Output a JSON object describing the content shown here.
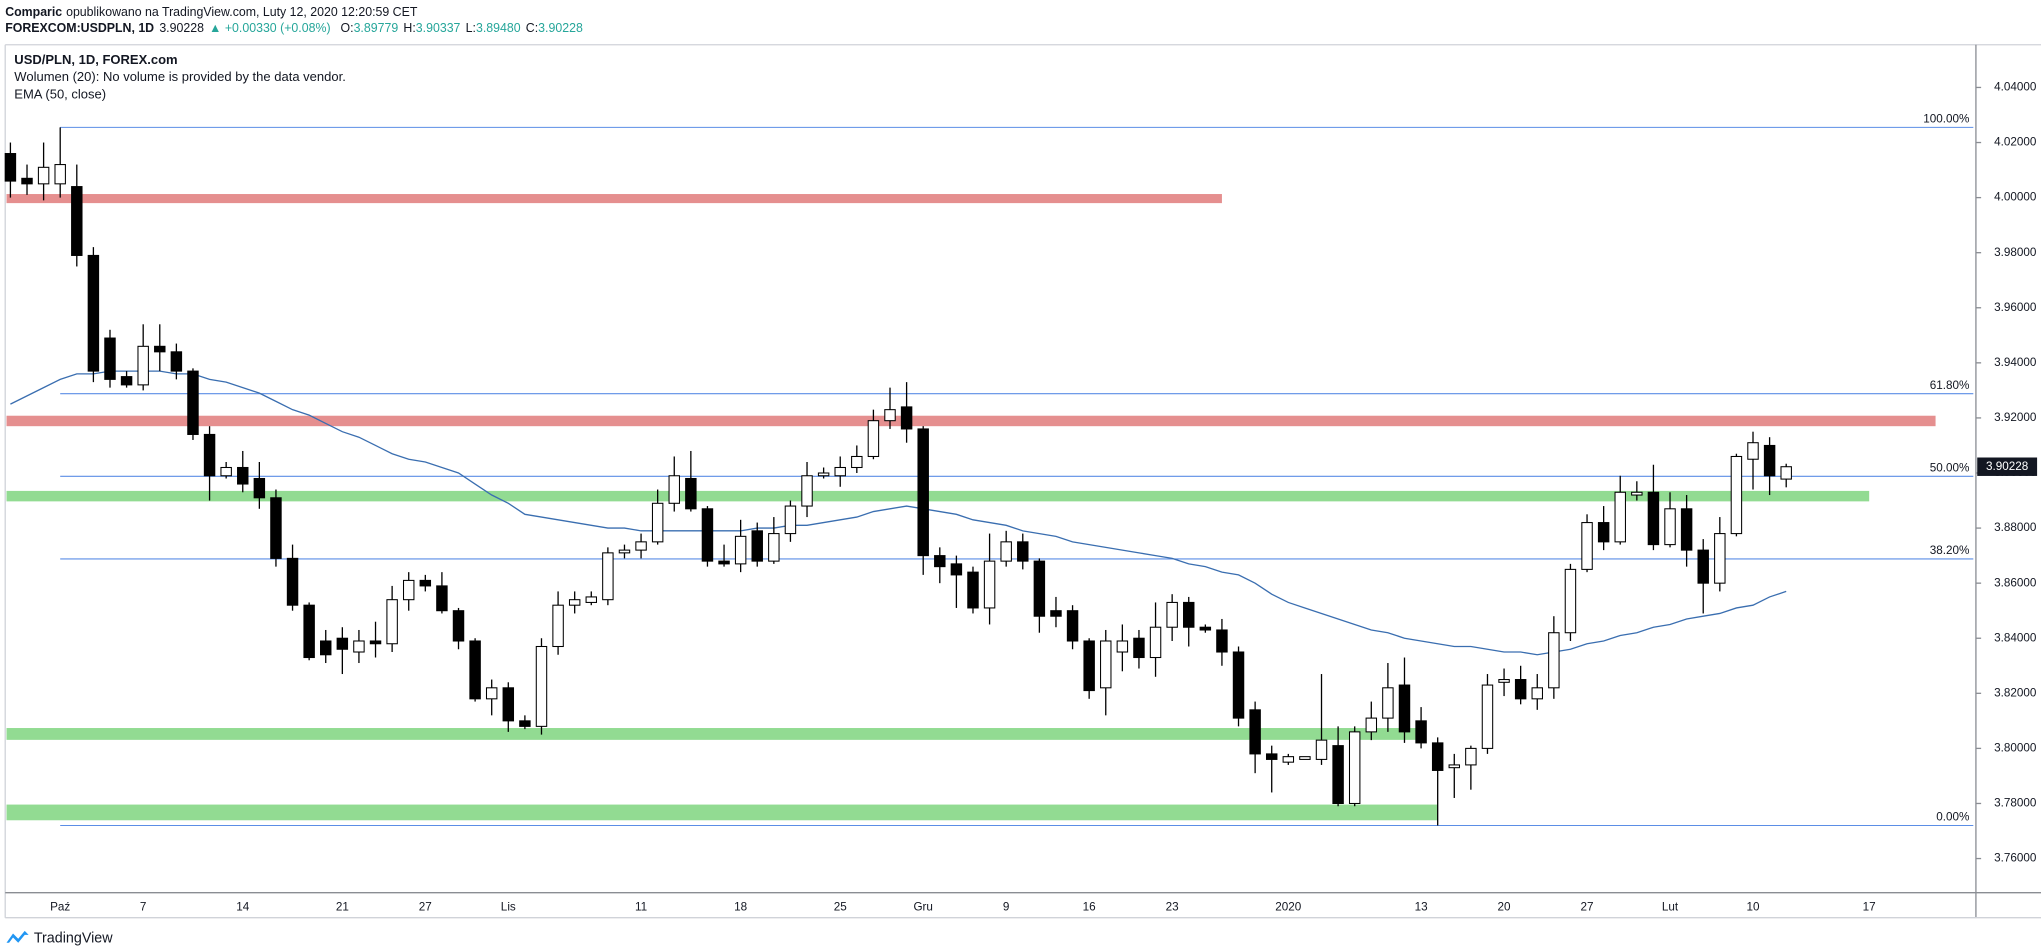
{
  "header": {
    "author": "Comparic",
    "note": "opublikowano na TradingView.com, Luty 12, 2020 12:20:59 CET",
    "symbol": "FOREXCOM:USDPLN, 1D",
    "price": "3.90228",
    "change": "▲ +0.00330 (+0.08%)",
    "ohlc": [
      {
        "label": "O:",
        "value": "3.89779"
      },
      {
        "label": "H:",
        "value": "3.90337"
      },
      {
        "label": "L:",
        "value": "3.89480"
      },
      {
        "label": "C:",
        "value": "3.90228"
      }
    ]
  },
  "footer": {
    "brand": "TradingView"
  },
  "chart_data": {
    "type": "candlestick",
    "volume_note": "Wolumen (20): No volume is provided by the data vendor.",
    "categories": [
      null,
      null,
      null,
      "Paź",
      null,
      null,
      null,
      null,
      "7",
      null,
      null,
      null,
      null,
      null,
      "14",
      null,
      null,
      null,
      null,
      null,
      "21",
      null,
      null,
      null,
      null,
      "27",
      null,
      null,
      null,
      null,
      "Lis",
      null,
      null,
      null,
      null,
      null,
      null,
      null,
      "11",
      null,
      null,
      null,
      null,
      null,
      "18",
      null,
      null,
      null,
      null,
      null,
      "25",
      null,
      null,
      null,
      null,
      "Gru",
      null,
      null,
      null,
      null,
      "9",
      null,
      null,
      null,
      null,
      "16",
      null,
      null,
      null,
      null,
      "23",
      null,
      null,
      null,
      null,
      null,
      null,
      "2020",
      null,
      null,
      null,
      null,
      null,
      null,
      null,
      "13",
      null,
      null,
      null,
      null,
      "20",
      null,
      null,
      null,
      null,
      "27",
      null,
      null,
      null,
      null,
      "Lut",
      null,
      null,
      null,
      null,
      "10",
      null,
      null,
      null,
      null,
      null,
      null,
      "17",
      null,
      null,
      null,
      null,
      null,
      null
    ],
    "series": [
      {
        "name": "USD/PLN, 1D, FOREX.com",
        "type": "candlestick",
        "up_color": "#ffffff",
        "down_color": "#000000",
        "border_color": "#000000",
        "open": [
          4.016,
          4.007,
          4.005,
          4.005,
          4.004,
          3.979,
          3.949,
          3.935,
          3.932,
          3.946,
          3.944,
          3.937,
          3.914,
          3.899,
          3.902,
          3.898,
          3.891,
          3.869,
          3.852,
          3.839,
          3.84,
          3.835,
          3.839,
          3.838,
          3.854,
          3.861,
          3.859,
          3.85,
          3.839,
          3.818,
          3.822,
          3.81,
          3.808,
          3.837,
          3.852,
          3.853,
          3.854,
          3.871,
          3.872,
          3.875,
          3.889,
          3.898,
          3.887,
          3.868,
          3.867,
          3.879,
          3.868,
          3.878,
          3.888,
          3.899,
          3.899,
          3.902,
          3.906,
          3.919,
          3.924,
          3.916,
          3.87,
          3.867,
          3.864,
          3.851,
          3.868,
          3.875,
          3.868,
          3.85,
          3.85,
          3.839,
          3.822,
          3.835,
          3.84,
          3.833,
          3.844,
          3.853,
          3.844,
          3.843,
          3.835,
          3.814,
          3.798,
          3.795,
          3.796,
          3.796,
          3.801,
          3.78,
          3.806,
          3.811,
          3.823,
          3.81,
          3.802,
          3.793,
          3.794,
          3.8,
          3.824,
          3.825,
          3.818,
          3.822,
          3.842,
          3.865,
          3.882,
          3.875,
          3.892,
          3.893,
          3.874,
          3.887,
          3.872,
          3.86,
          3.878,
          3.905,
          3.91,
          3.89779,
          null,
          null,
          null,
          null,
          null,
          null,
          null,
          null,
          null,
          null,
          null
        ],
        "high": [
          4.02,
          4.012,
          4.02,
          4.0255,
          4.012,
          3.982,
          3.952,
          3.937,
          3.954,
          3.954,
          3.947,
          3.938,
          3.917,
          3.904,
          3.908,
          3.904,
          3.894,
          3.874,
          3.853,
          3.843,
          3.844,
          3.843,
          3.846,
          3.859,
          3.864,
          3.863,
          3.864,
          3.851,
          3.84,
          3.825,
          3.824,
          3.812,
          3.84,
          3.857,
          3.857,
          3.857,
          3.873,
          3.874,
          3.878,
          3.894,
          3.906,
          3.908,
          3.888,
          3.874,
          3.883,
          3.882,
          3.884,
          3.89,
          3.904,
          3.902,
          3.906,
          3.91,
          3.923,
          3.931,
          3.933,
          3.917,
          3.873,
          3.87,
          3.866,
          3.878,
          3.879,
          3.878,
          3.869,
          3.855,
          3.852,
          3.84,
          3.843,
          3.845,
          3.843,
          3.853,
          3.856,
          3.855,
          3.845,
          3.847,
          3.837,
          3.817,
          3.801,
          3.798,
          3.797,
          3.827,
          3.808,
          3.808,
          3.817,
          3.831,
          3.833,
          3.815,
          3.804,
          3.798,
          3.801,
          3.827,
          3.829,
          3.83,
          3.827,
          3.848,
          3.867,
          3.885,
          3.888,
          3.899,
          3.897,
          3.903,
          3.893,
          3.892,
          3.876,
          3.884,
          3.907,
          3.915,
          3.913,
          3.90337,
          null,
          null,
          null,
          null,
          null,
          null,
          null,
          null,
          null,
          null,
          null
        ],
        "low": [
          4.0,
          4.001,
          3.999,
          4.0,
          3.975,
          3.933,
          3.931,
          3.931,
          3.93,
          3.937,
          3.934,
          3.912,
          3.89,
          3.898,
          3.893,
          3.887,
          3.866,
          3.85,
          3.832,
          3.831,
          3.827,
          3.831,
          3.833,
          3.835,
          3.85,
          3.857,
          3.849,
          3.836,
          3.817,
          3.812,
          3.806,
          3.807,
          3.805,
          3.834,
          3.849,
          3.852,
          3.852,
          3.869,
          3.869,
          3.874,
          3.886,
          3.886,
          3.866,
          3.866,
          3.864,
          3.866,
          3.867,
          3.875,
          3.884,
          3.898,
          3.895,
          3.9,
          3.905,
          3.916,
          3.911,
          3.863,
          3.86,
          3.851,
          3.849,
          3.845,
          3.866,
          3.865,
          3.842,
          3.844,
          3.836,
          3.818,
          3.812,
          3.828,
          3.829,
          3.826,
          3.839,
          3.837,
          3.842,
          3.83,
          3.808,
          3.791,
          3.784,
          3.794,
          3.796,
          3.794,
          3.779,
          3.779,
          3.803,
          3.806,
          3.802,
          3.8,
          3.772,
          3.782,
          3.785,
          3.798,
          3.819,
          3.816,
          3.814,
          3.818,
          3.839,
          3.864,
          3.872,
          3.874,
          3.89,
          3.872,
          3.873,
          3.866,
          3.849,
          3.857,
          3.877,
          3.894,
          3.892,
          3.8948,
          null,
          null,
          null,
          null,
          null,
          null,
          null,
          null,
          null,
          null,
          null
        ],
        "close": [
          4.006,
          4.005,
          4.011,
          4.012,
          3.979,
          3.937,
          3.934,
          3.932,
          3.946,
          3.944,
          3.937,
          3.914,
          3.899,
          3.902,
          3.896,
          3.891,
          3.869,
          3.852,
          3.833,
          3.834,
          3.836,
          3.839,
          3.838,
          3.854,
          3.861,
          3.859,
          3.85,
          3.839,
          3.818,
          3.822,
          3.81,
          3.808,
          3.837,
          3.852,
          3.854,
          3.855,
          3.871,
          3.872,
          3.875,
          3.889,
          3.899,
          3.887,
          3.868,
          3.867,
          3.877,
          3.868,
          3.878,
          3.888,
          3.899,
          3.9,
          3.902,
          3.906,
          3.919,
          3.923,
          3.916,
          3.87,
          3.866,
          3.863,
          3.851,
          3.868,
          3.875,
          3.868,
          3.848,
          3.848,
          3.839,
          3.821,
          3.839,
          3.839,
          3.833,
          3.844,
          3.853,
          3.844,
          3.843,
          3.835,
          3.811,
          3.798,
          3.796,
          3.797,
          3.797,
          3.803,
          3.78,
          3.806,
          3.811,
          3.822,
          3.806,
          3.802,
          3.792,
          3.794,
          3.8,
          3.823,
          3.825,
          3.818,
          3.822,
          3.842,
          3.865,
          3.882,
          3.875,
          3.893,
          3.893,
          3.874,
          3.887,
          3.872,
          3.86,
          3.878,
          3.906,
          3.911,
          3.899,
          3.90228,
          null,
          null,
          null,
          null,
          null,
          null,
          null,
          null,
          null,
          null,
          null
        ]
      },
      {
        "name": "EMA (50, close)",
        "type": "line",
        "color": "#3a6eb0",
        "values": [
          3.925,
          3.928,
          3.931,
          3.934,
          3.936,
          3.936,
          3.937,
          3.937,
          3.937,
          3.937,
          3.936,
          3.936,
          3.934,
          3.933,
          3.931,
          3.929,
          3.926,
          3.923,
          3.921,
          3.918,
          3.915,
          3.913,
          3.91,
          3.907,
          3.905,
          3.904,
          3.902,
          3.9,
          3.896,
          3.892,
          3.889,
          3.885,
          3.884,
          3.883,
          3.882,
          3.881,
          3.88,
          3.88,
          3.879,
          3.879,
          3.879,
          3.879,
          3.879,
          3.879,
          3.879,
          3.88,
          3.88,
          3.881,
          3.881,
          3.882,
          3.883,
          3.884,
          3.886,
          3.887,
          3.888,
          3.887,
          3.886,
          3.885,
          3.883,
          3.882,
          3.881,
          3.879,
          3.878,
          3.877,
          3.875,
          3.874,
          3.873,
          3.872,
          3.871,
          3.87,
          3.869,
          3.867,
          3.866,
          3.864,
          3.863,
          3.86,
          3.856,
          3.853,
          3.851,
          3.849,
          3.847,
          3.845,
          3.843,
          3.842,
          3.84,
          3.839,
          3.838,
          3.837,
          3.837,
          3.836,
          3.835,
          3.835,
          3.834,
          3.835,
          3.836,
          3.838,
          3.839,
          3.841,
          3.842,
          3.844,
          3.845,
          3.847,
          3.848,
          3.849,
          3.851,
          3.852,
          3.855,
          3.857,
          null,
          null,
          null,
          null,
          null,
          null,
          null,
          null,
          null,
          null,
          null
        ]
      }
    ],
    "fib": {
      "color": "#5b8ee6",
      "start": 3,
      "levels": [
        {
          "value": 4.0255,
          "label": "100.00%"
        },
        {
          "value": 3.9288,
          "label": "61.80%"
        },
        {
          "value": 3.8988,
          "label": "50.00%"
        },
        {
          "value": 3.8688,
          "label": "38.20%"
        },
        {
          "value": 3.772,
          "label": "0.00%"
        }
      ]
    },
    "zones": [
      {
        "low": 3.998,
        "high": 4.0013,
        "end": 73,
        "color": "#e58f8f"
      },
      {
        "low": 3.917,
        "high": 3.9208,
        "end": 116,
        "color": "#e58f8f"
      },
      {
        "low": 3.8897,
        "high": 3.8935,
        "end": 112,
        "color": "#92db92"
      },
      {
        "low": 3.8031,
        "high": 3.8074,
        "end": 85,
        "color": "#92db92"
      },
      {
        "low": 3.7739,
        "high": 3.7796,
        "end": 86,
        "color": "#92db92"
      }
    ],
    "ylim": [
      3.7476,
      4.0555
    ],
    "yticks": [
      {
        "value": 3.76,
        "label": "3.76000"
      },
      {
        "value": 3.78,
        "label": "3.78000"
      },
      {
        "value": 3.8,
        "label": "3.80000"
      },
      {
        "value": 3.82,
        "label": "3.82000"
      },
      {
        "value": 3.84,
        "label": "3.84000"
      },
      {
        "value": 3.86,
        "label": "3.86000"
      },
      {
        "value": 3.88,
        "label": "3.88000"
      },
      {
        "value": 3.9,
        "label": "3.90000"
      },
      {
        "value": 3.92,
        "label": "3.92000"
      },
      {
        "value": 3.94,
        "label": "3.94000"
      },
      {
        "value": 3.96,
        "label": "3.96000"
      },
      {
        "value": 3.98,
        "label": "3.98000"
      },
      {
        "value": 4.0,
        "label": "4.00000"
      },
      {
        "value": 4.02,
        "label": "4.02000"
      },
      {
        "value": 4.04,
        "label": "4.04000"
      }
    ],
    "grid": false
  }
}
